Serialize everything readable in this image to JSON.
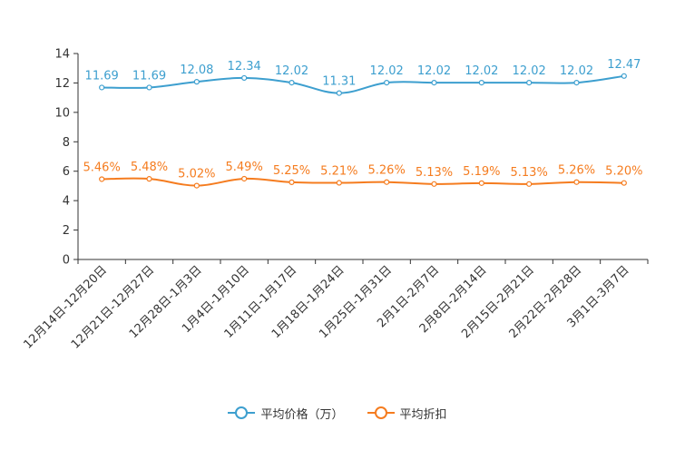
{
  "chart_data": {
    "type": "line",
    "title": "",
    "xlabel": "",
    "ylabel": "",
    "ylim": [
      0,
      14
    ],
    "yticks": [
      0,
      2,
      4,
      6,
      8,
      10,
      12,
      14
    ],
    "categories": [
      "12月14日-12月20日",
      "12月21日-12月27日",
      "12月28日-1月3日",
      "1月4日-1月10日",
      "1月11日-1月17日",
      "1月18日-1月24日",
      "1月25日-1月31日",
      "2月1日-2月7日",
      "2月8日-2月14日",
      "2月15日-2月21日",
      "2月22日-2月28日",
      "3月1日-3月7日"
    ],
    "series": [
      {
        "name": "平均价格（万）",
        "color": "#3d9fcf",
        "values": [
          11.69,
          11.69,
          12.08,
          12.34,
          12.02,
          11.31,
          12.02,
          12.02,
          12.02,
          12.02,
          12.02,
          12.47
        ],
        "labels": [
          "11.69",
          "11.69",
          "12.08",
          "12.34",
          "12.02",
          "11.31",
          "12.02",
          "12.02",
          "12.02",
          "12.02",
          "12.02",
          "12.47"
        ]
      },
      {
        "name": "平均折扣",
        "color": "#f57c1f",
        "values": [
          5.46,
          5.48,
          5.02,
          5.49,
          5.25,
          5.21,
          5.26,
          5.13,
          5.19,
          5.13,
          5.26,
          5.2
        ],
        "labels": [
          "5.46%",
          "5.48%",
          "5.02%",
          "5.49%",
          "5.25%",
          "5.21%",
          "5.26%",
          "5.13%",
          "5.19%",
          "5.13%",
          "5.26%",
          "5.20%"
        ]
      }
    ],
    "legend_position": "bottom",
    "grid": false
  }
}
